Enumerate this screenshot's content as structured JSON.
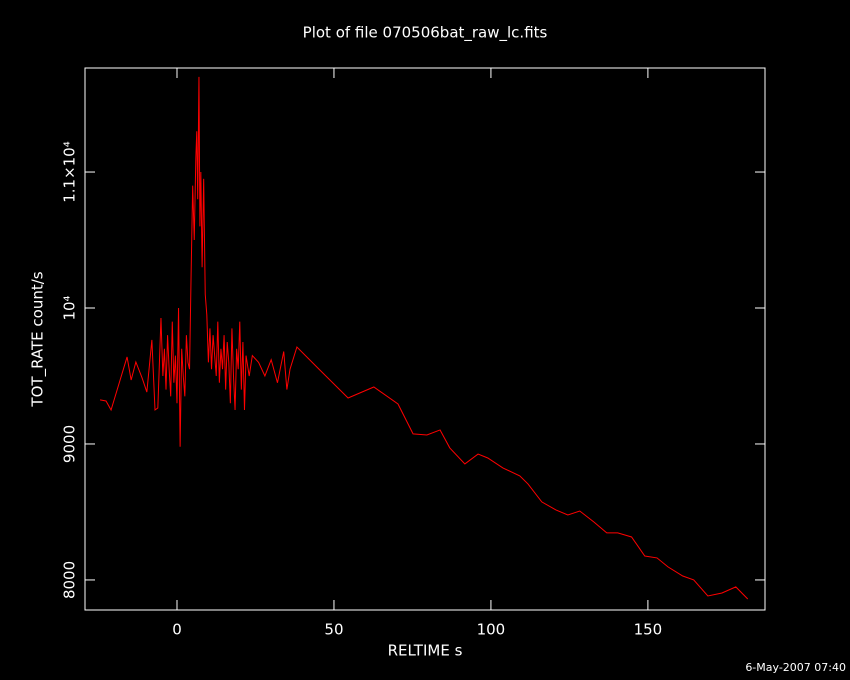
{
  "chart_data": {
    "type": "line",
    "title": "Plot of file 070506bat_raw_lc.fits",
    "x_label": "RELTIME  s",
    "y_label": "TOT_RATE  count/s",
    "footer": "6-May-2007 07:40",
    "color": "#ff0000",
    "grid": false,
    "xlim": [
      -29.3,
      187.3
    ],
    "ylim": [
      7779,
      11765
    ],
    "xticks": [
      0,
      50,
      100,
      150
    ],
    "yticks": [
      8000,
      9000,
      {
        "value": 10000,
        "label": "10⁴"
      },
      {
        "value": 11000,
        "label": "1.1×10⁴"
      }
    ],
    "x": [
      -24.5,
      -22.6,
      -21.0,
      -15.9,
      -14.6,
      -13.1,
      -11.1,
      -9.6,
      -8.0,
      -7.0,
      -6.1,
      -5.1,
      -4.5,
      -4,
      -3.5,
      -3,
      -2.5,
      -2,
      -1.5,
      -1,
      -0.5,
      0,
      0.5,
      1,
      1.5,
      2,
      2.5,
      3,
      3.5,
      4,
      4.5,
      5,
      5.5,
      6,
      6.3,
      6.6,
      7,
      7.3,
      7.6,
      8,
      8.5,
      9,
      9.5,
      10,
      10.5,
      11,
      11.5,
      12,
      12.5,
      13,
      13.5,
      14,
      14.5,
      15,
      15.5,
      16,
      16.5,
      17,
      17.5,
      18,
      18.5,
      19,
      19.5,
      20,
      20.5,
      21,
      21.5,
      22,
      23,
      24,
      26,
      28,
      30,
      32,
      34,
      35,
      36,
      38.2,
      45.5,
      54.5,
      62.7,
      70.4,
      75.2,
      79.6,
      83.8,
      86.9,
      91.7,
      95.9,
      99.0,
      103.8,
      109.2,
      111.8,
      116.2,
      120.7,
      124.5,
      128.3,
      132.8,
      136.9,
      140.4,
      144.8,
      149.0,
      152.9,
      156.4,
      161.1,
      164.6,
      169.1,
      173.6,
      178.0,
      181.8
    ],
    "values": [
      9324,
      9316,
      9250,
      9640,
      9470,
      9603,
      9485,
      9382,
      9765,
      9250,
      9265,
      9926,
      9500,
      9700,
      9400,
      9800,
      9550,
      9350,
      9900,
      9450,
      9650,
      9300,
      10000,
      8980,
      9700,
      9500,
      9350,
      9800,
      9600,
      9550,
      10250,
      10900,
      10500,
      11100,
      11300,
      10800,
      11700,
      10600,
      11000,
      10300,
      10950,
      10100,
      9950,
      9600,
      9850,
      9550,
      9800,
      9650,
      9500,
      9900,
      9450,
      9700,
      9550,
      9800,
      9400,
      9750,
      9600,
      9300,
      9850,
      9500,
      9250,
      9700,
      9550,
      9900,
      9400,
      9750,
      9250,
      9650,
      9500,
      9650,
      9600,
      9500,
      9620,
      9450,
      9680,
      9400,
      9550,
      9713,
      9544,
      9338,
      9419,
      9294,
      9074,
      9066,
      9103,
      8971,
      8853,
      8926,
      8897,
      8824,
      8765,
      8706,
      8574,
      8515,
      8478,
      8507,
      8426,
      8346,
      8346,
      8316,
      8176,
      8162,
      8096,
      8029,
      8000,
      7882,
      7904,
      7949,
      7860
    ]
  }
}
